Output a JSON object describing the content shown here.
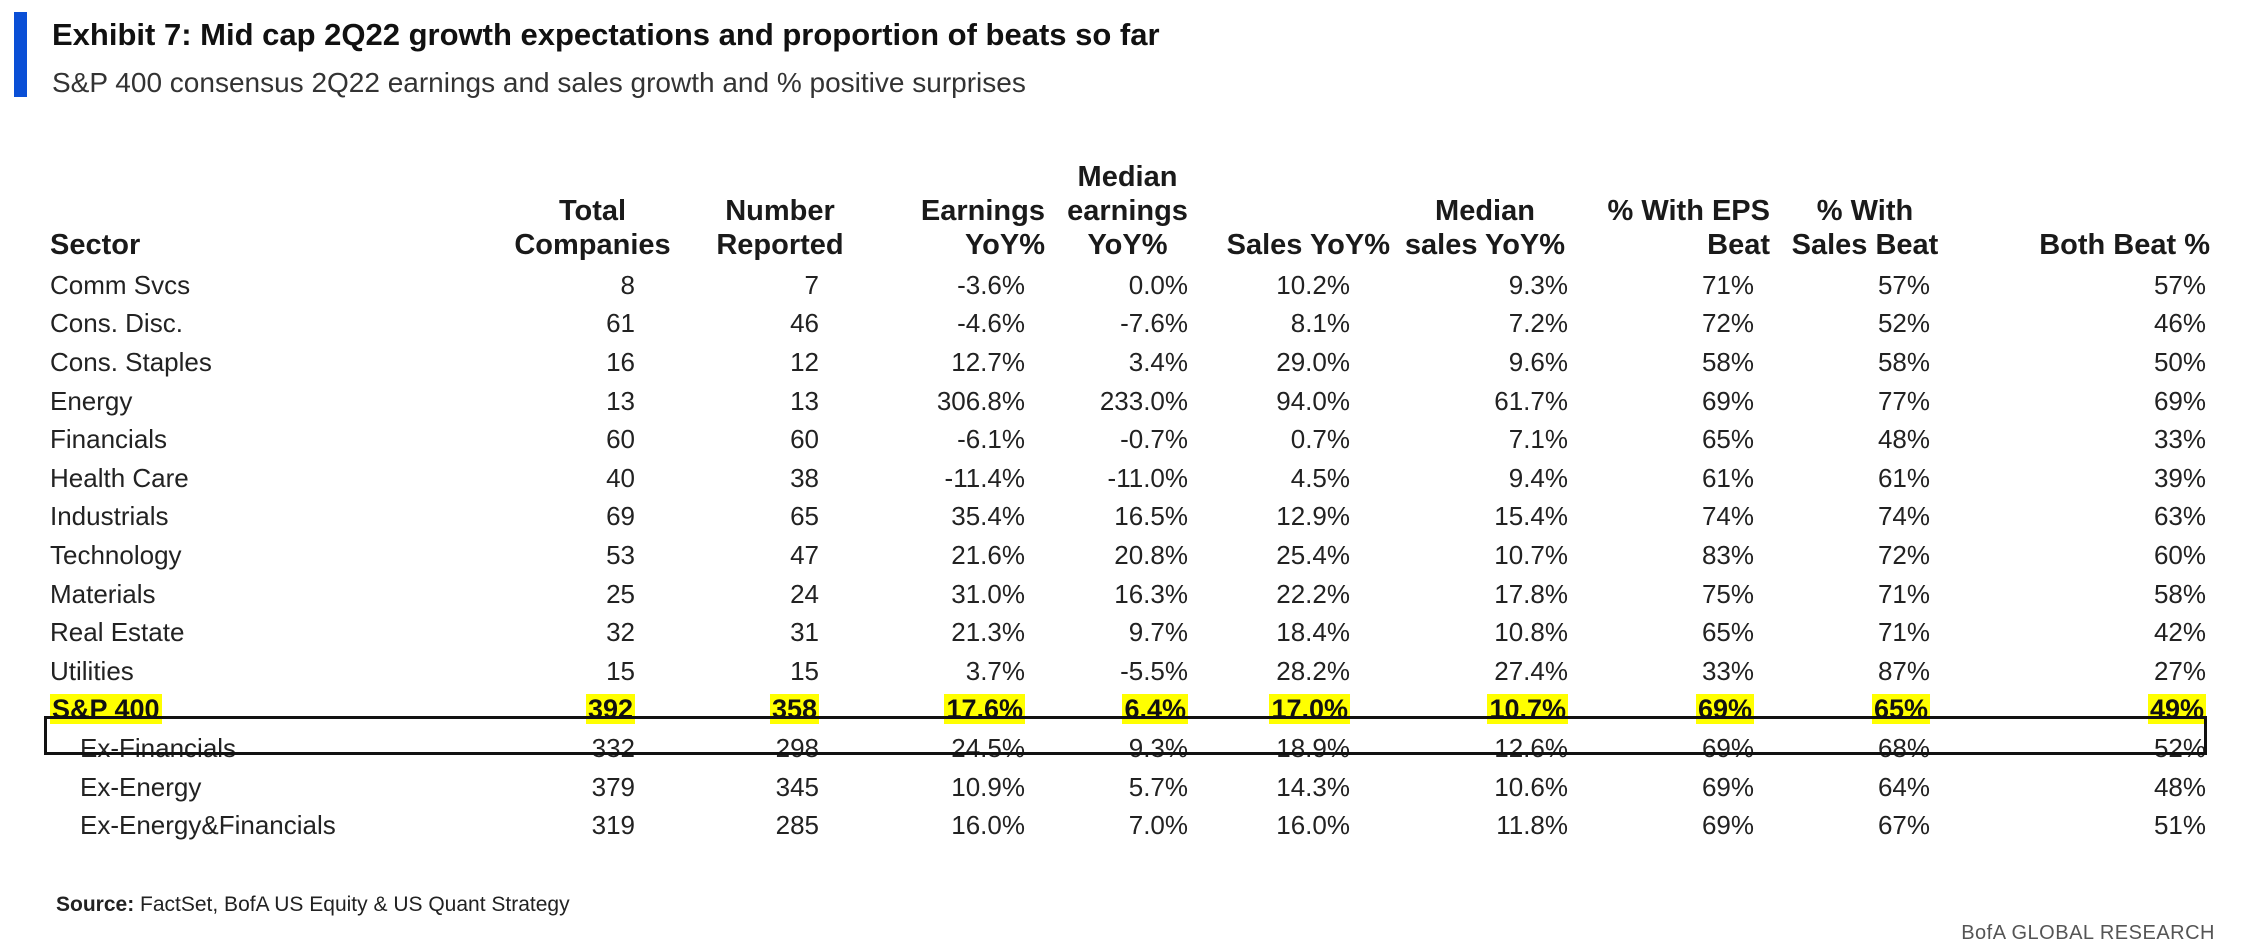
{
  "header": {
    "title": "Exhibit 7: Mid cap 2Q22 growth expectations and proportion of beats so far",
    "subtitle": "S&P 400 consensus 2Q22 earnings and sales growth and % positive surprises",
    "accent_color": "#0a4fd6"
  },
  "table": {
    "columns": [
      {
        "line1": "",
        "line2": "",
        "line3": "Sector"
      },
      {
        "line1": "",
        "line2": "Total",
        "line3": "Companies"
      },
      {
        "line1": "",
        "line2": "Number",
        "line3": "Reported"
      },
      {
        "line1": "",
        "line2": "Earnings",
        "line3": "YoY%"
      },
      {
        "line1": "Median",
        "line2": "earnings",
        "line3": "YoY%"
      },
      {
        "line1": "",
        "line2": "",
        "line3": "Sales YoY%"
      },
      {
        "line1": "",
        "line2": "Median",
        "line3": "sales YoY%"
      },
      {
        "line1": "",
        "line2": "% With EPS",
        "line3": "Beat"
      },
      {
        "line1": "",
        "line2": "% With",
        "line3": "Sales Beat"
      },
      {
        "line1": "",
        "line2": "",
        "line3": "Both Beat %"
      }
    ],
    "rows": [
      [
        "Comm Svcs",
        "8",
        "7",
        "-3.6%",
        "0.0%",
        "10.2%",
        "9.3%",
        "71%",
        "57%",
        "57%"
      ],
      [
        "Cons. Disc.",
        "61",
        "46",
        "-4.6%",
        "-7.6%",
        "8.1%",
        "7.2%",
        "72%",
        "52%",
        "46%"
      ],
      [
        "Cons. Staples",
        "16",
        "12",
        "12.7%",
        "3.4%",
        "29.0%",
        "9.6%",
        "58%",
        "58%",
        "50%"
      ],
      [
        "Energy",
        "13",
        "13",
        "306.8%",
        "233.0%",
        "94.0%",
        "61.7%",
        "69%",
        "77%",
        "69%"
      ],
      [
        "Financials",
        "60",
        "60",
        "-6.1%",
        "-0.7%",
        "0.7%",
        "7.1%",
        "65%",
        "48%",
        "33%"
      ],
      [
        "Health Care",
        "40",
        "38",
        "-11.4%",
        "-11.0%",
        "4.5%",
        "9.4%",
        "61%",
        "61%",
        "39%"
      ],
      [
        "Industrials",
        "69",
        "65",
        "35.4%",
        "16.5%",
        "12.9%",
        "15.4%",
        "74%",
        "74%",
        "63%"
      ],
      [
        "Technology",
        "53",
        "47",
        "21.6%",
        "20.8%",
        "25.4%",
        "10.7%",
        "83%",
        "72%",
        "60%"
      ],
      [
        "Materials",
        "25",
        "24",
        "31.0%",
        "16.3%",
        "22.2%",
        "17.8%",
        "75%",
        "71%",
        "58%"
      ],
      [
        "Real Estate",
        "32",
        "31",
        "21.3%",
        "9.7%",
        "18.4%",
        "10.8%",
        "65%",
        "71%",
        "42%"
      ],
      [
        "Utilities",
        "15",
        "15",
        "3.7%",
        "-5.5%",
        "28.2%",
        "27.4%",
        "33%",
        "87%",
        "27%"
      ]
    ],
    "total_row": [
      "S&P 400",
      "392",
      "358",
      "17.6%",
      "6.4%",
      "17.0%",
      "10.7%",
      "69%",
      "65%",
      "49%"
    ],
    "sub_rows": [
      [
        "Ex-Financials",
        "332",
        "298",
        "24.5%",
        "9.3%",
        "18.9%",
        "12.6%",
        "69%",
        "68%",
        "52%"
      ],
      [
        "Ex-Energy",
        "379",
        "345",
        "10.9%",
        "5.7%",
        "14.3%",
        "10.6%",
        "69%",
        "64%",
        "48%"
      ],
      [
        "Ex-Energy&Financials",
        "319",
        "285",
        "16.0%",
        "7.0%",
        "16.0%",
        "11.8%",
        "69%",
        "67%",
        "51%"
      ]
    ],
    "highlight_color": "#ffff00"
  },
  "footer": {
    "source_label": "Source:",
    "source_text": "FactSet, BofA US Equity & US Quant Strategy",
    "brand": "BofA GLOBAL RESEARCH"
  }
}
